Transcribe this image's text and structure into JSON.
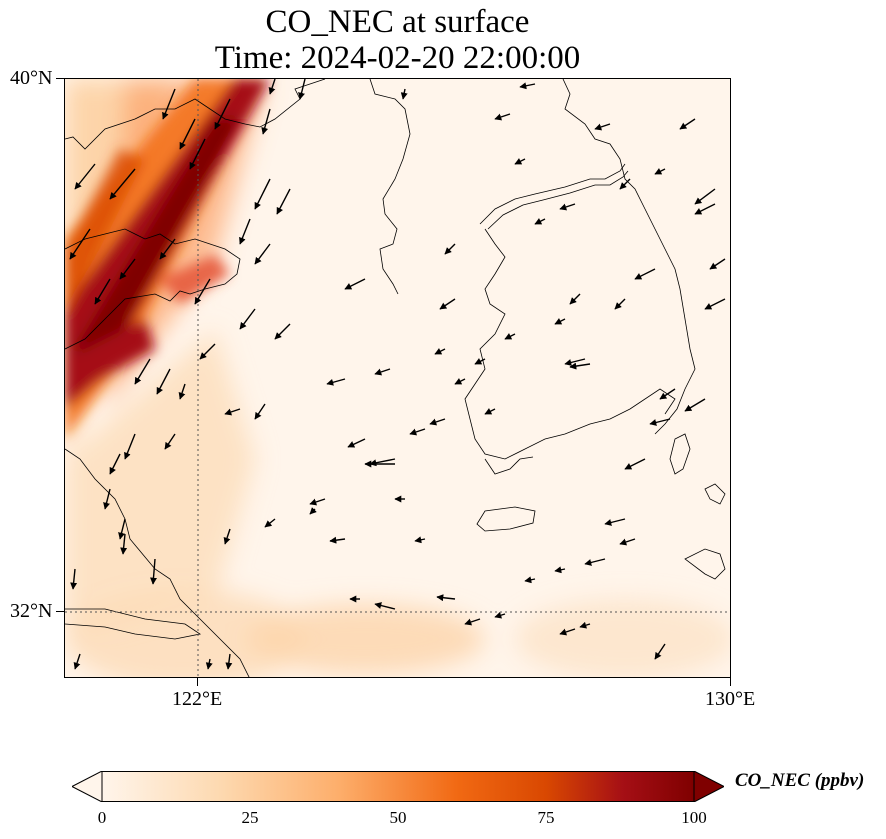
{
  "title_line1": "CO_NEC at surface",
  "title_line2": "Time: 2024-02-20 22:00:00",
  "lat_labels": [
    "40°N",
    "32°N"
  ],
  "lon_labels": [
    "122°E",
    "130°E"
  ],
  "colorbar": {
    "label": "CO_NEC (ppbv)",
    "ticks": [
      "0",
      "25",
      "50",
      "75",
      "100"
    ],
    "colormap": [
      "#fff5eb",
      "#fdd9b0",
      "#fdae6b",
      "#f16913",
      "#d94801",
      "#a50f15",
      "#7f0000"
    ]
  },
  "map": {
    "extent": {
      "lon_min": 120.0,
      "lon_max": 130.0,
      "lat_min": 31.0,
      "lat_max": 40.0
    },
    "field": "CO_NEC",
    "unit": "ppbv"
  }
}
